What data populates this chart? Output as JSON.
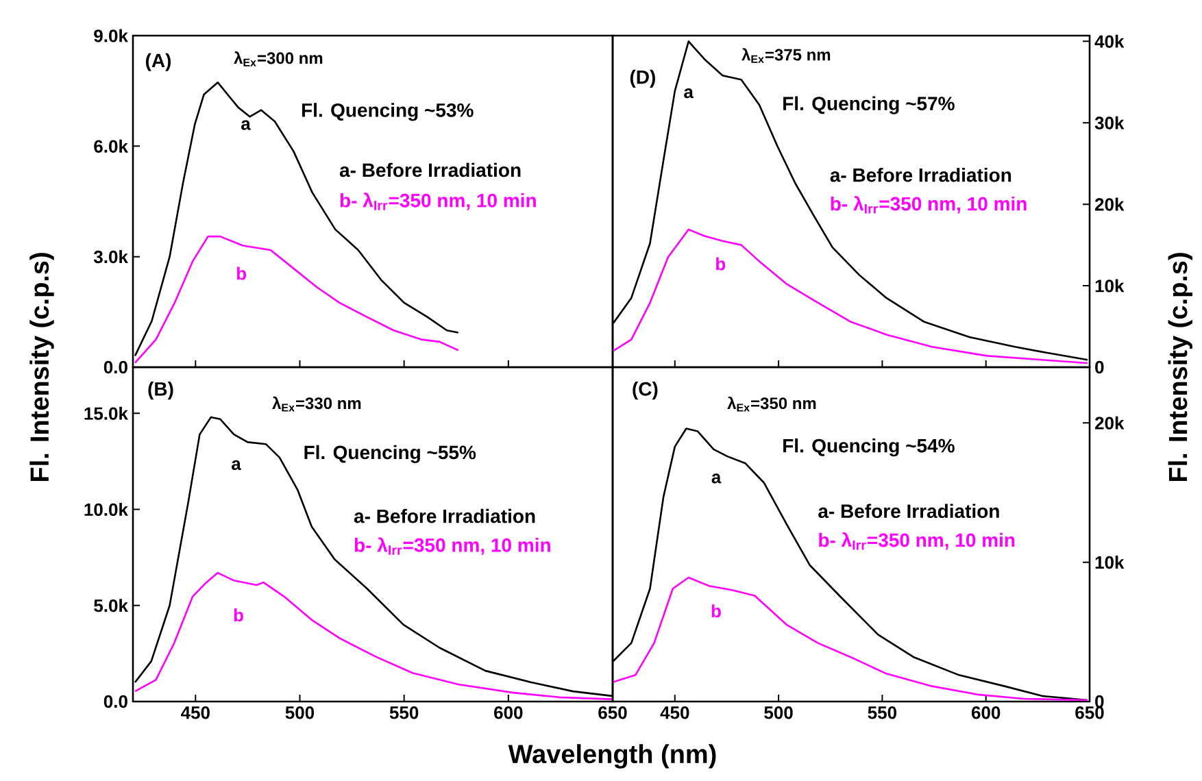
{
  "chart_data": [
    {
      "type": "line",
      "ylabel": "Fl. Intensity (c.p.s)",
      "xlim": [
        420,
        650
      ],
      "ylim": [
        0,
        9000
      ],
      "xticks": [
        450,
        500,
        550,
        600,
        650
      ],
      "yticks": [
        {
          "value": 0,
          "label": "0.0"
        },
        {
          "value": 3000,
          "label": "3.0k"
        },
        {
          "value": 6000,
          "label": "6.0k"
        },
        {
          "value": 9000,
          "label": "9.0k"
        }
      ],
      "tick_labels": "y",
      "legend": "top right",
      "annotations": [
        "(A)",
        "λ$_{Ex}$=300 nm",
        "Fl. Quencing  ~53%",
        "a",
        "b"
      ],
      "series": [
        {
          "name": "a- Before Irradiation",
          "color": "#000000",
          "x": [
            421,
            429,
            437.6,
            444,
            449.7,
            454,
            460.7,
            466,
            470.5,
            476,
            481.5,
            488,
            497,
            506,
            517,
            528,
            539,
            550,
            561,
            570.5,
            576
          ],
          "values": [
            310,
            1250,
            3000,
            5000,
            6600,
            7400,
            7730,
            7360,
            7050,
            6800,
            6980,
            6670,
            5860,
            4740,
            3740,
            3180,
            2370,
            1750,
            1370,
            1000,
            940
          ]
        },
        {
          "name": "b- λ$_{Irr}$=350 nm, 10 min",
          "color": "#ff00ff",
          "x": [
            421,
            431,
            440,
            448.6,
            456,
            461.8,
            472.7,
            486,
            497,
            508,
            519,
            532,
            545,
            558.5,
            567,
            576
          ],
          "values": [
            120,
            750,
            1750,
            2870,
            3550,
            3550,
            3300,
            3180,
            2680,
            2180,
            1750,
            1370,
            1000,
            750,
            690,
            460
          ]
        }
      ]
    },
    {
      "type": "line",
      "ylabel": "Fl. Intensity (c.p.s)",
      "xlim": [
        420,
        650
      ],
      "ylim": [
        0,
        40700
      ],
      "xticks": [
        450,
        500,
        550,
        600,
        650
      ],
      "yticks": [
        0,
        {
          "value": 10000,
          "label": "10k"
        },
        {
          "value": 20000,
          "label": "20k"
        },
        {
          "value": 30000,
          "label": "30k"
        },
        {
          "value": 40000,
          "label": "40k"
        }
      ],
      "tick_labels": "y",
      "legend": "top right",
      "annotations": [
        "(D)",
        "λ$_{Ex}$=375 nm",
        "Fl. Quencing  ~57%",
        "a",
        "b"
      ],
      "series": [
        {
          "name": "a- Before Irradiation",
          "color": "#000000",
          "x": [
            420.3,
            429,
            438,
            444.5,
            450,
            456.6,
            464.3,
            473,
            482,
            490.7,
            499.5,
            508,
            517,
            526,
            539,
            552,
            570,
            592,
            614,
            631,
            649
          ],
          "values": [
            5400,
            8500,
            15200,
            25400,
            33900,
            40000,
            37800,
            35800,
            35300,
            32200,
            27100,
            22600,
            18600,
            14700,
            11300,
            8500,
            5600,
            3700,
            2500,
            1700,
            900
          ]
        },
        {
          "name": "b- λ$_{Irr}$=350 nm, 10 min",
          "color": "#ff00ff",
          "x": [
            420.3,
            429,
            438,
            446.7,
            456.6,
            464.3,
            473,
            482,
            490.7,
            504,
            517,
            534.6,
            552,
            574,
            600.5,
            627,
            649
          ],
          "values": [
            2000,
            3400,
            7900,
            13500,
            16900,
            16100,
            15500,
            15000,
            13000,
            10200,
            8200,
            5600,
            4000,
            2500,
            1400,
            900,
            500
          ]
        }
      ]
    },
    {
      "type": "line",
      "xlabel": "Wavelength (nm)",
      "xlim": [
        420,
        650
      ],
      "ylim": [
        0,
        17400
      ],
      "xticks": [
        450,
        500,
        550,
        600,
        650
      ],
      "yticks": [
        {
          "value": 0,
          "label": "0.0"
        },
        {
          "value": 5000,
          "label": "5.0k"
        },
        {
          "value": 10000,
          "label": "10.0k"
        },
        {
          "value": 15000,
          "label": "15.0k"
        }
      ],
      "legend": "top right",
      "annotations": [
        "(B)",
        "λ$_{Ex}$=330 nm",
        "Fl. Quencing  ~55%",
        "a",
        "b"
      ],
      "series": [
        {
          "name": "a- Before Irradiation",
          "color": "#000000",
          "x": [
            421,
            428.8,
            437.6,
            446.4,
            452,
            457.4,
            461.8,
            468.4,
            475,
            483.7,
            490.3,
            499,
            505.7,
            516.7,
            532,
            549.7,
            567,
            589,
            611,
            631,
            649.7
          ],
          "values": [
            1000,
            2100,
            5000,
            10300,
            13900,
            14800,
            14700,
            13900,
            13500,
            13400,
            12700,
            11000,
            9100,
            7400,
            5900,
            4000,
            2800,
            1600,
            1000,
            530,
            290
          ]
        },
        {
          "name": "b- λ$_{Irr}$=350 nm, 10 min",
          "color": "#ff00ff",
          "x": [
            421,
            431,
            439.8,
            448.6,
            455,
            460.7,
            468.4,
            479.3,
            482.6,
            492.5,
            505.7,
            519,
            536.5,
            554,
            576,
            602.4,
            624.4,
            649.7
          ],
          "values": [
            530,
            1130,
            3050,
            5460,
            6180,
            6700,
            6300,
            6060,
            6200,
            5460,
            4250,
            3300,
            2330,
            1490,
            890,
            460,
            220,
            120
          ]
        }
      ]
    },
    {
      "type": "line",
      "xlim": [
        420,
        650
      ],
      "ylim": [
        0,
        24000
      ],
      "xticks": [
        450,
        500,
        550,
        600,
        650
      ],
      "yticks": [
        0,
        {
          "value": 10000,
          "label": "10k"
        },
        {
          "value": 20000,
          "label": "20k"
        }
      ],
      "legend": "top right",
      "annotations": [
        "(C)",
        "λ$_{Ex}$=350 nm",
        "Fl. Quencing  ~54%",
        "a",
        "b"
      ],
      "series": [
        {
          "name": "a- Before Irradiation",
          "color": "#000000",
          "x": [
            420.3,
            429,
            438,
            444.5,
            450,
            455.5,
            461,
            468.7,
            475.3,
            484,
            493,
            504,
            515,
            530,
            548,
            565,
            587,
            609,
            627,
            649
          ],
          "values": [
            2900,
            4200,
            8100,
            14700,
            18300,
            19600,
            19400,
            18100,
            17600,
            17100,
            15700,
            12700,
            9800,
            7500,
            4800,
            3200,
            1900,
            1100,
            400,
            100
          ]
        },
        {
          "name": "b- λ$_{Irr}$=350 nm, 10 min",
          "color": "#ff00ff",
          "x": [
            420.3,
            431,
            440,
            449,
            456.6,
            466.5,
            477.5,
            488.5,
            504,
            519,
            534.6,
            552,
            574,
            596,
            618,
            649
          ],
          "values": [
            1400,
            1900,
            4200,
            8100,
            8900,
            8300,
            8000,
            7600,
            5500,
            4200,
            3200,
            2000,
            1100,
            500,
            200,
            100
          ]
        }
      ]
    }
  ]
}
